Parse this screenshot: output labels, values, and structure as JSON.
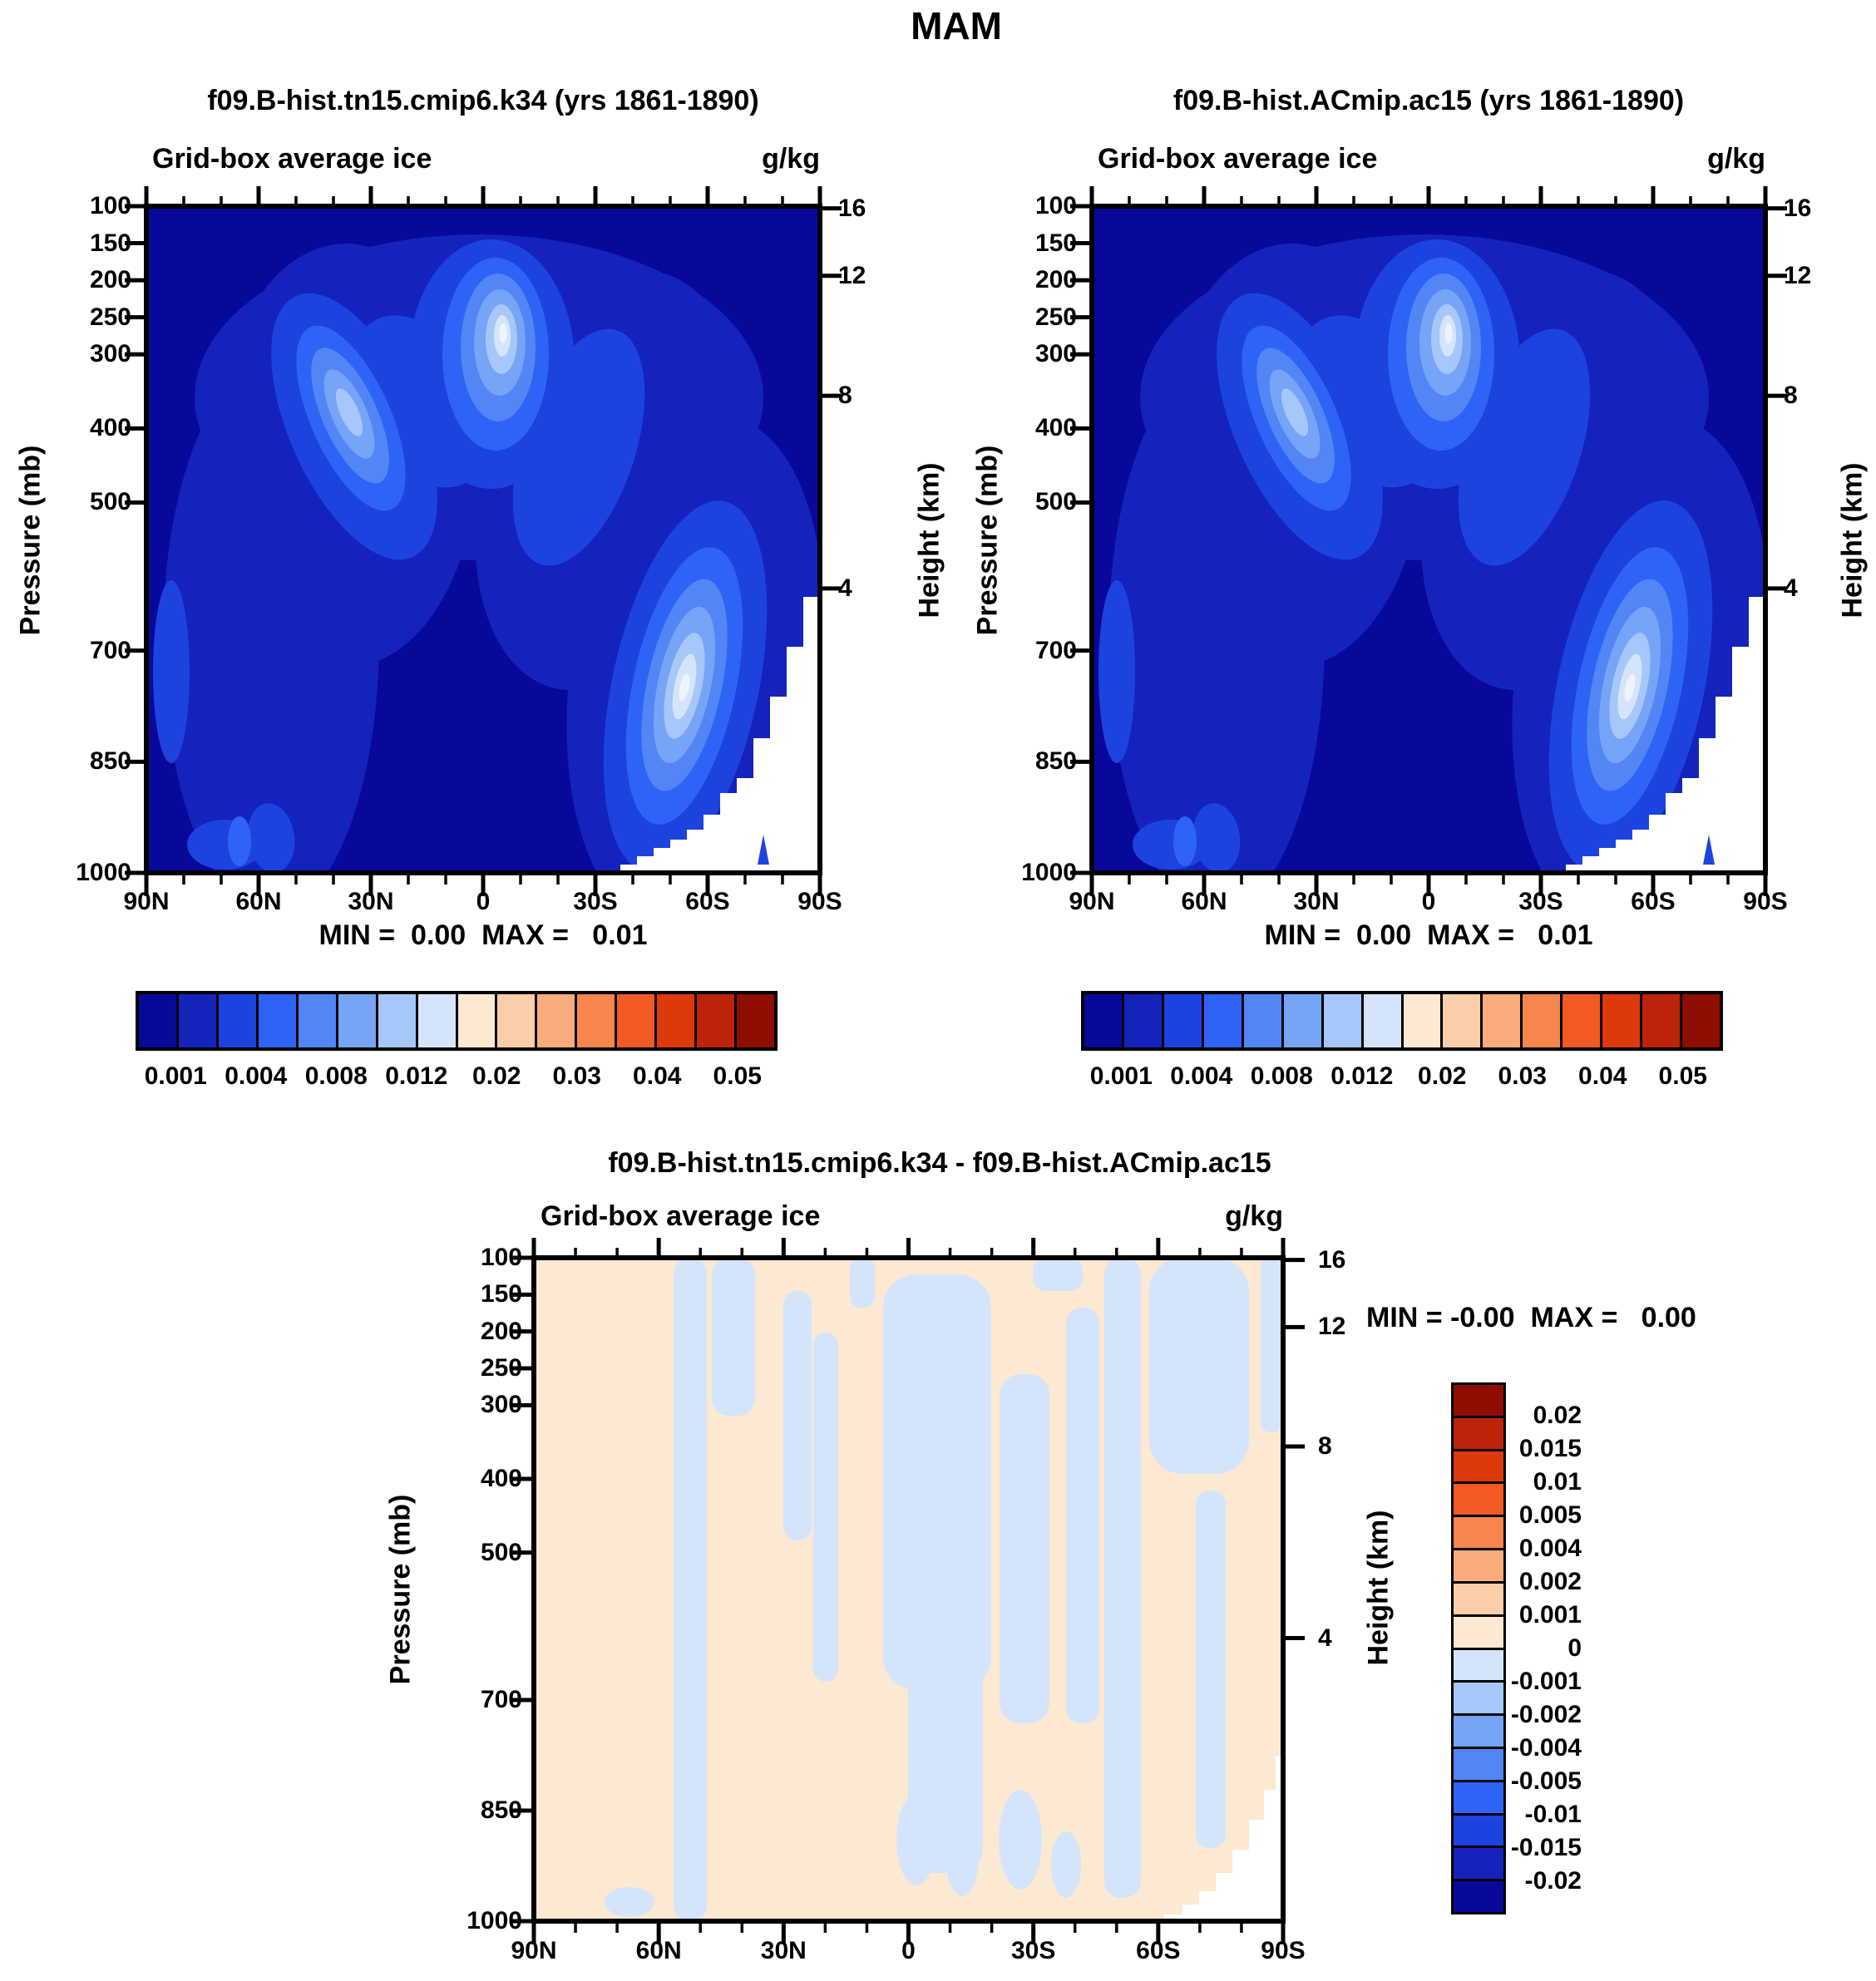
{
  "page": {
    "title": "MAM"
  },
  "panels": {
    "top_left": {
      "title": "f09.B-hist.tn15.cmip6.k34 (yrs 1861-1890)",
      "field_label": "Grid-box average ice",
      "units": "g/kg",
      "stats": "MIN =  0.00  MAX =   0.01"
    },
    "top_right": {
      "title": "f09.B-hist.ACmip.ac15 (yrs 1861-1890)",
      "field_label": "Grid-box average ice",
      "units": "g/kg",
      "stats": "MIN =  0.00  MAX =   0.01"
    },
    "diff": {
      "title": "f09.B-hist.tn15.cmip6.k34 - f09.B-hist.ACmip.ac15",
      "field_label": "Grid-box average ice",
      "units": "g/kg",
      "stats": "MIN = -0.00  MAX =   0.00"
    }
  },
  "axis": {
    "pressure_title": "Pressure (mb)",
    "height_title": "Height (km)",
    "pressure_tick_labels": [
      "100",
      "150",
      "200",
      "250",
      "300",
      "400",
      "500",
      "700",
      "850",
      "1000"
    ],
    "pressure_tick_values": [
      100,
      150,
      200,
      250,
      300,
      400,
      500,
      700,
      850,
      1000
    ],
    "height_tick_labels": [
      "16",
      "12",
      "8",
      "4"
    ],
    "height_tick_values": [
      16,
      12,
      8,
      4
    ],
    "height_tick_mb": [
      103,
      194,
      356,
      616
    ],
    "lat_tick_labels": [
      "90N",
      "60N",
      "30N",
      "0",
      "30S",
      "60S",
      "90S"
    ],
    "lat_tick_values": [
      90,
      60,
      30,
      0,
      -30,
      -60,
      -90
    ],
    "lat_minor_step_deg": 10
  },
  "colorbar_top": {
    "labels": [
      "0.001",
      "0.004",
      "0.008",
      "0.012",
      "0.02",
      "0.03",
      "0.04",
      "0.05"
    ],
    "label_boundary_index": [
      1,
      3,
      5,
      7,
      9,
      11,
      13,
      15
    ],
    "n_boxes": 16,
    "colors": [
      "#08089B",
      "#1423BC",
      "#1D43DF",
      "#2E64F6",
      "#5286F5",
      "#76A4F6",
      "#A5C7F9",
      "#D4E5FB",
      "#FDE8D2",
      "#FBCDA8",
      "#F9AC7B",
      "#F6854E",
      "#F15A22",
      "#DE390B",
      "#BC2308",
      "#8E0E02"
    ]
  },
  "colorbar_diff": {
    "labels": [
      "0.02",
      "0.015",
      "0.01",
      "0.005",
      "0.004",
      "0.002",
      "0.001",
      "0",
      "-0.001",
      "-0.002",
      "-0.004",
      "-0.005",
      "-0.01",
      "-0.015",
      "-0.02"
    ],
    "n_boxes": 16,
    "colors": [
      "#8E0E02",
      "#BC2308",
      "#DE390B",
      "#F15A22",
      "#F6854E",
      "#F9AC7B",
      "#FBCDA8",
      "#FDE8D2",
      "#D4E5FB",
      "#A5C7F9",
      "#76A4F6",
      "#5286F5",
      "#2E64F6",
      "#1D43DF",
      "#1423BC",
      "#08089B"
    ]
  },
  "palette": {
    "surface_white": "#FFFFFF",
    "core_highlight": "#EDF4FD",
    "diff_background": "#FDE8D2",
    "diff_negative_patch": "#D4E5FB"
  },
  "chart_data": [
    {
      "type": "heatmap",
      "subtype": "filled-contour latitude-pressure cross-section",
      "title": "f09.B-hist.tn15.cmip6.k34 (yrs 1861-1890)",
      "field": "Grid-box average ice",
      "units": "g/kg",
      "x_axis": {
        "tick_labels": [
          "90N",
          "60N",
          "30N",
          "0",
          "30S",
          "60S",
          "90S"
        ],
        "tick_values_deg": [
          90,
          60,
          30,
          0,
          -30,
          -60,
          -90
        ],
        "minor_tick_deg": 10
      },
      "y_axis": {
        "label": "Pressure (mb)",
        "ticks": [
          100,
          150,
          200,
          250,
          300,
          400,
          500,
          700,
          850,
          1000
        ],
        "orientation": "100 mb at top, 1000 mb at bottom, linear in pressure"
      },
      "y2_axis": {
        "label": "Height (km)",
        "ticks": [
          16,
          12,
          8,
          4
        ],
        "tick_pressure_equiv_mb": [
          103,
          194,
          356,
          616
        ]
      },
      "stats_text": "MIN =  0.00  MAX =   0.01",
      "labeled_contour_levels_g_per_kg": [
        0.001,
        0.004,
        0.008,
        0.012,
        0.02,
        0.03,
        0.04,
        0.05
      ],
      "features": [
        "deep-blue (lowest bin <0.001) background over poles aloft and tropical lower troposphere",
        "bright maximum core (~0.012 g/kg, palest shade) near 0-5S at 250-300 mb",
        "secondary elongated maximum near 35N at ~375 mb",
        "strong low-level maximum (~0.012 g/kg) near 55S at 700-800 mb",
        "small enhanced-ice blobs near 60-75N close to the surface",
        "white below-surface Antarctic terrain staircase south of ~62S rising to ~600 mb at 90S"
      ]
    },
    {
      "type": "heatmap",
      "subtype": "filled-contour latitude-pressure cross-section",
      "title": "f09.B-hist.ACmip.ac15 (yrs 1861-1890)",
      "field": "Grid-box average ice",
      "units": "g/kg",
      "x_axis": {
        "tick_labels": [
          "90N",
          "60N",
          "30N",
          "0",
          "30S",
          "60S",
          "90S"
        ],
        "tick_values_deg": [
          90,
          60,
          30,
          0,
          -30,
          -60,
          -90
        ],
        "minor_tick_deg": 10
      },
      "y_axis": {
        "label": "Pressure (mb)",
        "ticks": [
          100,
          150,
          200,
          250,
          300,
          400,
          500,
          700,
          850,
          1000
        ],
        "orientation": "100 mb at top, 1000 mb at bottom, linear in pressure"
      },
      "y2_axis": {
        "label": "Height (km)",
        "ticks": [
          16,
          12,
          8,
          4
        ],
        "tick_pressure_equiv_mb": [
          103,
          194,
          356,
          616
        ]
      },
      "stats_text": "MIN =  0.00  MAX =   0.01",
      "labeled_contour_levels_g_per_kg": [
        0.001,
        0.004,
        0.008,
        0.012,
        0.02,
        0.03,
        0.04,
        0.05
      ],
      "features": [
        "pattern essentially identical to left panel: tropical upper-level maximum ~250-300 mb",
        "mid-latitude NH maximum ~35N ~375 mb",
        "SH storm-track maximum ~55S at 700-800 mb",
        "white Antarctic terrain staircase south of ~62S"
      ]
    },
    {
      "type": "heatmap",
      "subtype": "filled-contour difference (run1 minus run2)",
      "title": "f09.B-hist.tn15.cmip6.k34 - f09.B-hist.ACmip.ac15",
      "field": "Grid-box average ice",
      "units": "g/kg",
      "x_axis": {
        "tick_labels": [
          "90N",
          "60N",
          "30N",
          "0",
          "30S",
          "60S",
          "90S"
        ],
        "tick_values_deg": [
          90,
          60,
          30,
          0,
          -30,
          -60,
          -90
        ],
        "minor_tick_deg": 10
      },
      "y_axis": {
        "label": "Pressure (mb)",
        "ticks": [
          100,
          150,
          200,
          250,
          300,
          400,
          500,
          700,
          850,
          1000
        ],
        "orientation": "100 mb at top, 1000 mb at bottom, linear in pressure"
      },
      "y2_axis": {
        "label": "Height (km)",
        "ticks": [
          16,
          12,
          8,
          4
        ],
        "tick_pressure_equiv_mb": [
          103,
          194,
          356,
          616
        ]
      },
      "stats_text": "MIN = -0.00  MAX =   0.00",
      "colorbar_levels_g_per_kg": [
        0.02,
        0.015,
        0.01,
        0.005,
        0.004,
        0.002,
        0.001,
        0,
        -0.001,
        -0.002,
        -0.004,
        -0.005,
        -0.01,
        -0.015,
        -0.02
      ],
      "features": [
        "differences everywhere within ±0.001 g/kg: pale peach (0 to +0.001) background",
        "irregular pale-blue vertical streaks (-0.001 to 0) scattered at ~55N, 45N, 20N, equator-30S column, 50S, 60-75S aloft and 80S",
        "white Antarctic terrain staircase at lower right"
      ]
    }
  ]
}
